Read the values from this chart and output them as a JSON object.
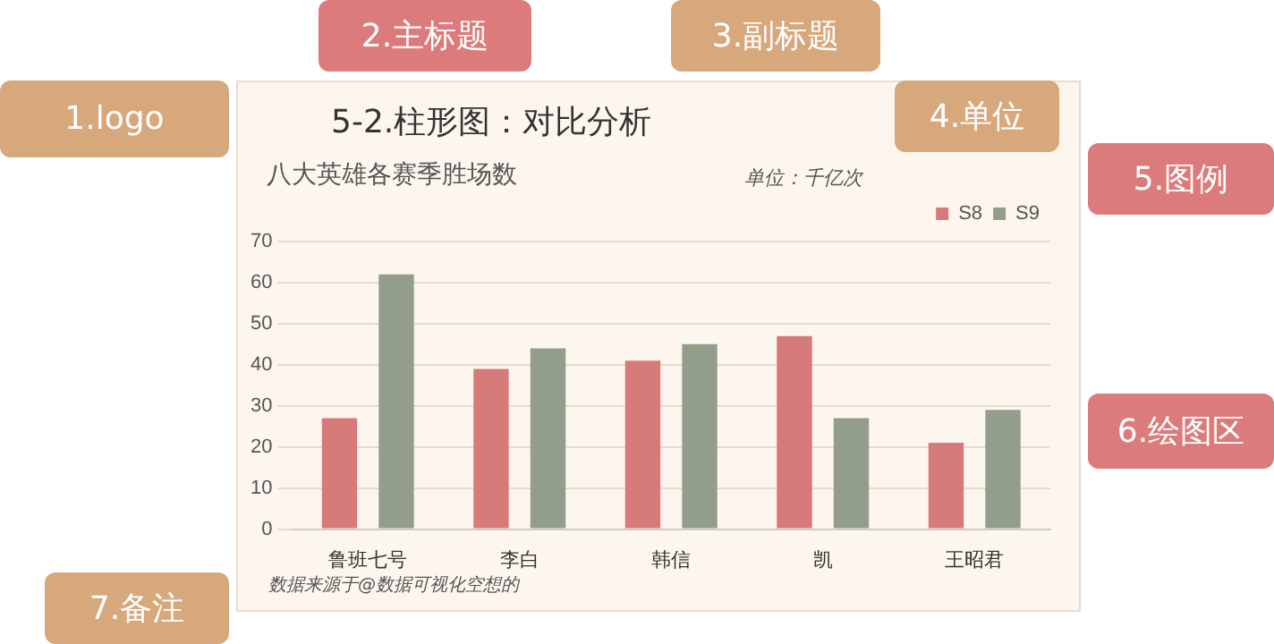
{
  "chart_data": {
    "type": "bar",
    "title": "5-2.柱形图：对比分析",
    "subtitle": "八大英雄各赛季胜场数",
    "ylabel": "单位：千亿次",
    "categories": [
      "鲁班七号",
      "李白",
      "韩信",
      "凯",
      "王昭君"
    ],
    "series": [
      {
        "name": "S8",
        "color": "#d77a7a",
        "values": [
          27,
          39,
          41,
          47,
          21
        ]
      },
      {
        "name": "S9",
        "color": "#939e8a",
        "values": [
          62,
          44,
          45,
          27,
          29
        ]
      }
    ],
    "ylim": [
      0,
      70
    ],
    "yticks": [
      0,
      10,
      20,
      30,
      40,
      50,
      60,
      70
    ],
    "grid": "y",
    "legend": "top right",
    "annotations": [
      "数据来源于@数据可视化空想的",
      "1.logo",
      "2.主标题",
      "3.副标题",
      "4.单位",
      "5.图例",
      "6.绘图区",
      "7.备注"
    ]
  }
}
